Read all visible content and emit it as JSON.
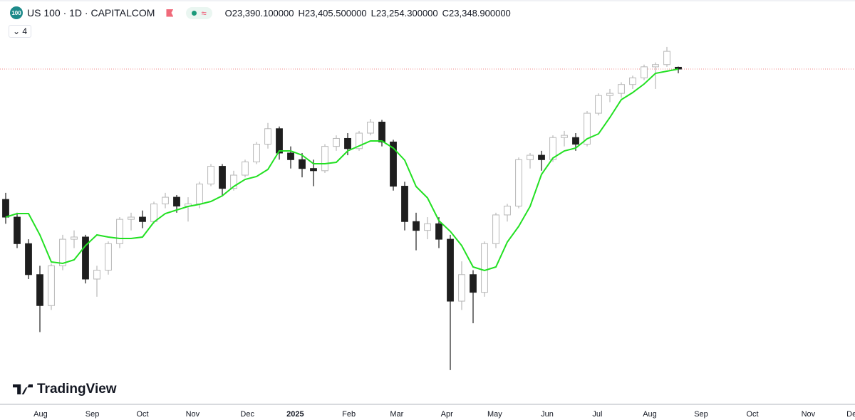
{
  "header": {
    "badge": "100",
    "symbol": "US 100 · 1D · CAPITALCOM",
    "indicator_icon": "≈",
    "ohlc": [
      {
        "key": "O",
        "value": "23,390.100000"
      },
      {
        "key": "H",
        "value": "23,405.500000"
      },
      {
        "key": "L",
        "value": "23,254.300000"
      },
      {
        "key": "C",
        "value": "23,348.900000"
      }
    ],
    "indicators_count": "4"
  },
  "branding": "TradingView",
  "chart_data": {
    "type": "candlestick",
    "open": [
      20400,
      20000,
      19400,
      18700,
      18000,
      18900,
      19500,
      19550,
      18600,
      18800,
      19400,
      19950,
      20000,
      19900,
      20300,
      20450,
      20250,
      20300,
      20750,
      21150,
      20650,
      20950,
      21250,
      21650,
      22000,
      21450,
      21300,
      21100,
      21050,
      21600,
      21780,
      21550,
      21900,
      22150,
      21700,
      20700,
      19900,
      19700,
      19850,
      19500,
      18100,
      18700,
      18300,
      19400,
      20050,
      20250,
      21300,
      21400,
      21300,
      21800,
      21800,
      21650,
      22350,
      22750,
      22800,
      23000,
      23150,
      23400,
      23450,
      23390.1
    ],
    "high": [
      20550,
      20100,
      19500,
      18900,
      18950,
      19600,
      19700,
      19600,
      18900,
      19450,
      20000,
      20100,
      20150,
      20350,
      20550,
      20500,
      20450,
      20800,
      21200,
      21200,
      21050,
      21300,
      21700,
      22130,
      22050,
      21600,
      21450,
      21300,
      21650,
      21850,
      21900,
      21950,
      22220,
      22200,
      21750,
      20800,
      20100,
      20000,
      20000,
      19600,
      19000,
      18800,
      19450,
      20100,
      20300,
      21350,
      21450,
      21500,
      21850,
      21950,
      21900,
      22400,
      22800,
      22900,
      23050,
      23200,
      23450,
      23500,
      23850,
      23405.5
    ],
    "low": [
      19850,
      19300,
      18600,
      17400,
      17900,
      18800,
      19300,
      18500,
      18200,
      18700,
      19300,
      19700,
      19750,
      19850,
      20200,
      20100,
      19900,
      20200,
      20700,
      20500,
      20600,
      20900,
      21200,
      21550,
      21300,
      21100,
      20900,
      20700,
      21000,
      21500,
      21400,
      21500,
      21850,
      21600,
      20600,
      19700,
      19250,
      19500,
      19300,
      16540,
      17900,
      17600,
      18200,
      19300,
      19900,
      20200,
      21100,
      21050,
      21250,
      21600,
      21500,
      21600,
      22300,
      22600,
      22700,
      22900,
      23100,
      22900,
      23400,
      23254.3
    ],
    "close": [
      20000,
      19400,
      18700,
      18000,
      18900,
      19500,
      19550,
      18600,
      18800,
      19400,
      19950,
      20000,
      19900,
      20300,
      20450,
      20250,
      20300,
      20750,
      21150,
      20650,
      20950,
      21250,
      21650,
      22000,
      21450,
      21300,
      21100,
      21050,
      21600,
      21780,
      21550,
      21900,
      22150,
      21700,
      20700,
      19900,
      19700,
      19850,
      19500,
      18100,
      18700,
      18300,
      19400,
      20050,
      20250,
      21300,
      21400,
      21300,
      21800,
      21850,
      21650,
      22350,
      22750,
      22800,
      23000,
      23150,
      23400,
      23450,
      23750,
      23348.9
    ],
    "up_color": "#b8b8b8",
    "down_color": "#1e1e1e",
    "line": {
      "color": "#22e022",
      "values": [
        20000,
        20081,
        20081,
        19598,
        18986,
        18954,
        19034,
        19356,
        19598,
        19549,
        19517,
        19517,
        19549,
        19887,
        20081,
        20161,
        20242,
        20290,
        20354,
        20483,
        20692,
        20853,
        20918,
        21079,
        21497,
        21497,
        21401,
        21208,
        21208,
        21240,
        21497,
        21610,
        21723,
        21723,
        21562,
        21288,
        20692,
        20435,
        19920,
        19678,
        19356,
        18873,
        18793,
        18873,
        19437,
        19791,
        20242,
        20966,
        21336,
        21497,
        21562,
        21771,
        21884,
        22254,
        22657,
        22818,
        23011,
        23252,
        23301,
        23349
      ]
    },
    "price_line_color": "#f08a8a",
    "ylim": [
      15766,
      24911
    ],
    "xlim": [
      -0.5,
      74.5
    ],
    "xticks": [
      {
        "value": 3.06,
        "label": "Aug"
      },
      {
        "value": 7.6,
        "label": "Sep"
      },
      {
        "value": 12,
        "label": "Oct"
      },
      {
        "value": 16.4,
        "label": "Nov"
      },
      {
        "value": 21.2,
        "label": "Dec"
      },
      {
        "value": 25.4,
        "label": "2025",
        "bold": true
      },
      {
        "value": 30.1,
        "label": "Feb"
      },
      {
        "value": 34.3,
        "label": "Mar"
      },
      {
        "value": 38.7,
        "label": "Apr"
      },
      {
        "value": 42.9,
        "label": "May"
      },
      {
        "value": 47.5,
        "label": "Jun"
      },
      {
        "value": 51.9,
        "label": "Jul"
      },
      {
        "value": 56.5,
        "label": "Aug"
      },
      {
        "value": 61,
        "label": "Sep"
      },
      {
        "value": 65.5,
        "label": "Oct"
      },
      {
        "value": 70.4,
        "label": "Nov"
      },
      {
        "value": 74.2,
        "label": "De"
      }
    ]
  }
}
